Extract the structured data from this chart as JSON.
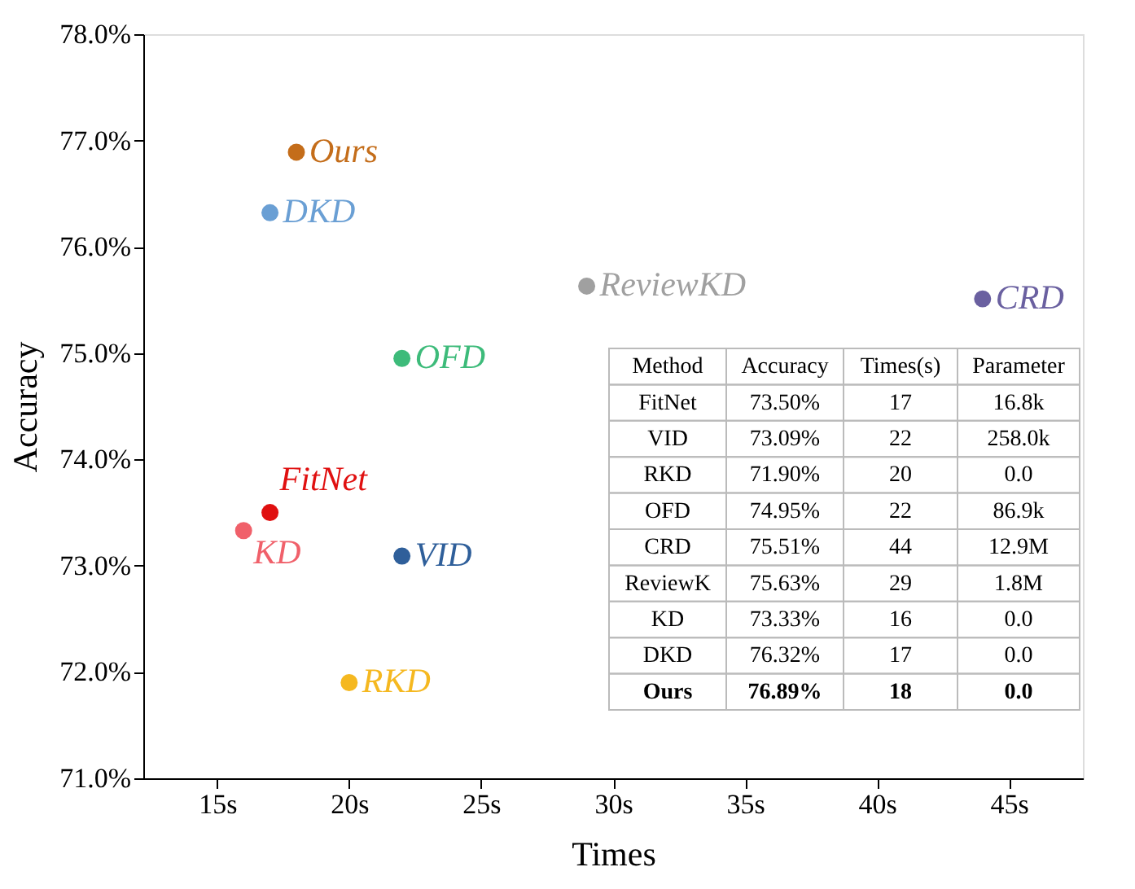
{
  "chart_data": {
    "type": "scatter",
    "xlabel": "Times",
    "ylabel": "Accuracy",
    "xlim": [
      12.2,
      47.8
    ],
    "ylim": [
      71,
      78
    ],
    "xticks": [
      {
        "value": 15,
        "label": "15s"
      },
      {
        "value": 20,
        "label": "20s"
      },
      {
        "value": 25,
        "label": "25s"
      },
      {
        "value": 30,
        "label": "30s"
      },
      {
        "value": 35,
        "label": "35s"
      },
      {
        "value": 40,
        "label": "40s"
      },
      {
        "value": 45,
        "label": "45s"
      }
    ],
    "yticks": [
      {
        "value": 71,
        "label": "71.0%"
      },
      {
        "value": 72,
        "label": "72.0%"
      },
      {
        "value": 73,
        "label": "73.0%"
      },
      {
        "value": 74,
        "label": "74.0%"
      },
      {
        "value": 75,
        "label": "75.0%"
      },
      {
        "value": 76,
        "label": "76.0%"
      },
      {
        "value": 77,
        "label": "77.0%"
      },
      {
        "value": 78,
        "label": "78.0%"
      }
    ],
    "grid": false,
    "legend": false,
    "marker": "circle",
    "series": [
      {
        "name": "Ours",
        "color": "#c46d1a",
        "x": [
          18
        ],
        "values": [
          76.89
        ]
      },
      {
        "name": "DKD",
        "color": "#6a9fd4",
        "x": [
          17
        ],
        "values": [
          76.32
        ]
      },
      {
        "name": "ReviewKD",
        "color": "#a0a0a0",
        "x": [
          29
        ],
        "values": [
          75.63
        ]
      },
      {
        "name": "CRD",
        "color": "#6a60a0",
        "x": [
          44
        ],
        "values": [
          75.51
        ]
      },
      {
        "name": "OFD",
        "color": "#3dbb7a",
        "x": [
          22
        ],
        "values": [
          74.95
        ]
      },
      {
        "name": "FitNet",
        "color": "#e01010",
        "x": [
          17
        ],
        "values": [
          73.5
        ]
      },
      {
        "name": "KD",
        "color": "#f0606a",
        "x": [
          16
        ],
        "values": [
          73.33
        ]
      },
      {
        "name": "VID",
        "color": "#2f5f9a",
        "x": [
          22
        ],
        "values": [
          73.09
        ]
      },
      {
        "name": "RKD",
        "color": "#f5b820",
        "x": [
          20
        ],
        "values": [
          71.9
        ]
      }
    ],
    "annotations": [
      "Method",
      "Accuracy",
      "Times(s)",
      "Parameter",
      "FitNet",
      "73.50%",
      "17",
      "16.8k",
      "VID",
      "73.09%",
      "22",
      "258.0k",
      "RKD",
      "71.90%",
      "20",
      "0.0",
      "OFD",
      "74.95%",
      "22",
      "86.9k",
      "CRD",
      "75.51%",
      "44",
      "12.9M",
      "ReviewK",
      "75.63%",
      "29",
      "1.8M",
      "KD",
      "73.33%",
      "16",
      "0.0",
      "DKD",
      "76.32%",
      "17",
      "0.0",
      "Ours",
      "76.89%",
      "18",
      "0.0"
    ]
  }
}
